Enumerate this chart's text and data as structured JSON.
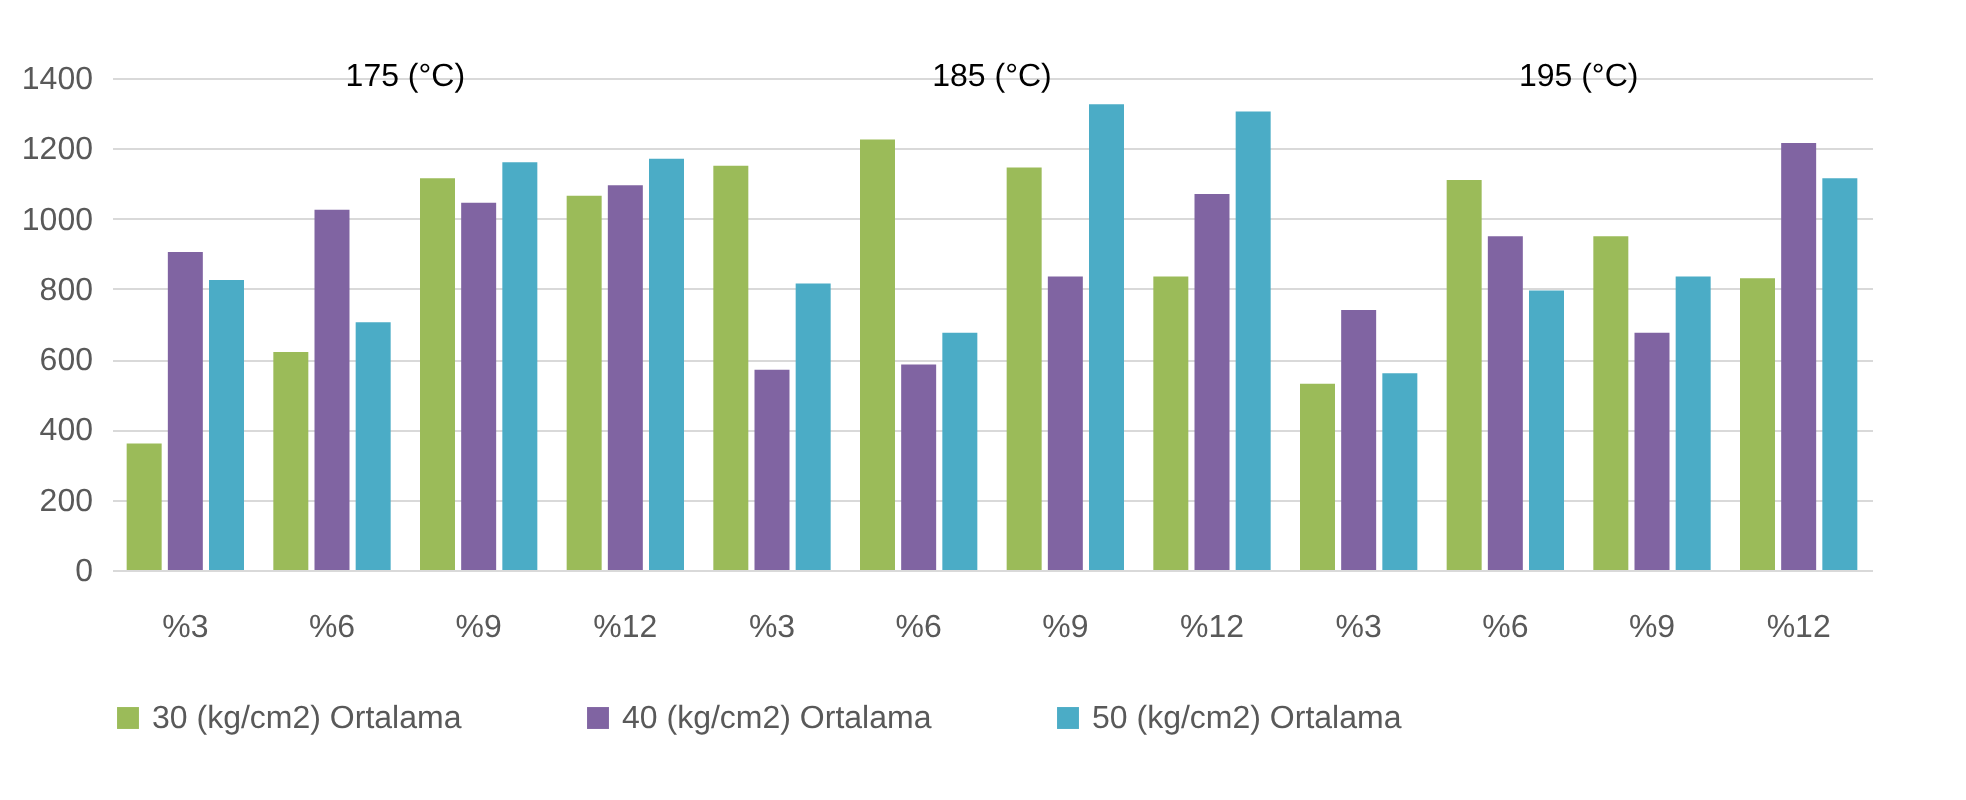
{
  "chart_data": {
    "type": "bar",
    "categories": [
      "%3",
      "%6",
      "%9",
      "%12",
      "%3",
      "%6",
      "%9",
      "%12",
      "%3",
      "%6",
      "%9",
      "%12"
    ],
    "series": [
      {
        "name": "30 (kg/cm2) Ortalama",
        "color": "#9bbb59",
        "values": [
          360,
          620,
          1115,
          1065,
          1150,
          1225,
          1145,
          835,
          530,
          1110,
          950,
          830
        ]
      },
      {
        "name": "40 (kg/cm2) Ortalama",
        "color": "#8064a2",
        "values": [
          905,
          1025,
          1045,
          1095,
          570,
          585,
          835,
          1070,
          740,
          950,
          675,
          1215
        ]
      },
      {
        "name": "50 (kg/cm2) Ortalama",
        "color": "#4bacc6",
        "values": [
          825,
          705,
          1160,
          1170,
          815,
          675,
          1325,
          1305,
          560,
          795,
          835,
          1115
        ]
      }
    ],
    "annotations": [
      "175 (°C)",
      "185 (°C)",
      "195 (°C)"
    ],
    "ylim": [
      0,
      1400
    ],
    "yticks": [
      0,
      200,
      400,
      600,
      800,
      1000,
      1200,
      1400
    ],
    "grid": "y",
    "legend": "bottom"
  }
}
